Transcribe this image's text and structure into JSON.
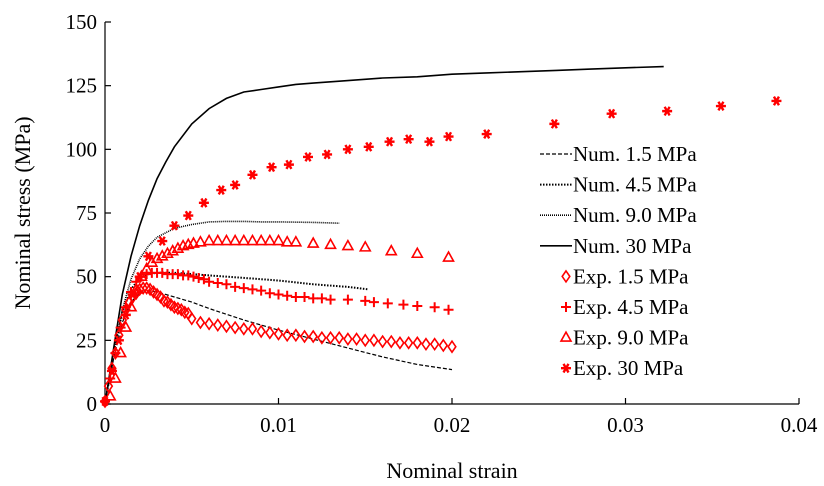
{
  "chart_data": {
    "type": "scatter",
    "title": "",
    "xlabel": "Nominal strain",
    "ylabel": "Nominal stress (MPa)",
    "xlim": [
      0,
      0.04
    ],
    "ylim": [
      0,
      150
    ],
    "xticks": [
      0,
      0.01,
      0.02,
      0.03,
      0.04
    ],
    "xtick_labels": [
      "0",
      "0.01",
      "0.02",
      "0.03",
      "0.04"
    ],
    "yticks": [
      0,
      25,
      50,
      75,
      100,
      125,
      150
    ],
    "ytick_labels": [
      "0",
      "25",
      "50",
      "75",
      "100",
      "125",
      "150"
    ],
    "grid": false,
    "legend_position": "right",
    "series": [
      {
        "name": "Num. 1.5 MPa",
        "kind": "line",
        "style": "dashed",
        "color": "#000000",
        "x": [
          0,
          0.0005,
          0.001,
          0.0015,
          0.002,
          0.0025,
          0.003,
          0.004,
          0.005,
          0.006,
          0.008,
          0.01,
          0.012,
          0.014,
          0.016,
          0.018,
          0.02
        ],
        "y": [
          0,
          18,
          32,
          40,
          43.5,
          44.5,
          44,
          42,
          40,
          37.5,
          33,
          29,
          25.5,
          22,
          18.5,
          15.5,
          13.5
        ]
      },
      {
        "name": "Num. 4.5 MPa",
        "kind": "line",
        "style": "dotted-plus",
        "color": "#000000",
        "x": [
          0,
          0.0005,
          0.001,
          0.0015,
          0.002,
          0.0025,
          0.003,
          0.004,
          0.005,
          0.006,
          0.008,
          0.01,
          0.012,
          0.014,
          0.0152
        ],
        "y": [
          0,
          20,
          36,
          45,
          49.5,
          51,
          51.5,
          51.5,
          51,
          50.5,
          49.5,
          48.5,
          47,
          46,
          45
        ]
      },
      {
        "name": "Num. 9.0 MPa",
        "kind": "line",
        "style": "dotted",
        "color": "#000000",
        "x": [
          0,
          0.0005,
          0.001,
          0.0015,
          0.002,
          0.0025,
          0.003,
          0.004,
          0.005,
          0.006,
          0.007,
          0.008,
          0.009,
          0.01,
          0.012,
          0.0135
        ],
        "y": [
          0,
          20,
          37,
          49,
          57,
          62,
          65.5,
          69,
          70.5,
          71.5,
          71.7,
          71.7,
          71.5,
          71.5,
          71.3,
          71
        ]
      },
      {
        "name": "Num. 30 MPa",
        "kind": "line",
        "style": "solid",
        "color": "#000000",
        "x": [
          0,
          0.0005,
          0.001,
          0.0015,
          0.002,
          0.0025,
          0.003,
          0.0035,
          0.004,
          0.005,
          0.006,
          0.007,
          0.008,
          0.009,
          0.01,
          0.011,
          0.012,
          0.014,
          0.016,
          0.018,
          0.02,
          0.022,
          0.024,
          0.026,
          0.028,
          0.03,
          0.0322
        ],
        "y": [
          0,
          22,
          43,
          58,
          70,
          80,
          88.5,
          95,
          101,
          110,
          116,
          120,
          122.5,
          123.5,
          124.5,
          125.5,
          126,
          127,
          128,
          128.5,
          129.5,
          130,
          130.5,
          131,
          131.5,
          132,
          132.5
        ]
      },
      {
        "name": "Exp. 1.5 MPa",
        "kind": "marker",
        "marker": "diamond",
        "color": "#ff0000",
        "x": [
          0,
          0.0002,
          0.0004,
          0.0006,
          0.0008,
          0.001,
          0.0012,
          0.0014,
          0.0016,
          0.0018,
          0.002,
          0.0022,
          0.0024,
          0.0026,
          0.0028,
          0.003,
          0.0032,
          0.0034,
          0.0036,
          0.0038,
          0.004,
          0.0042,
          0.0044,
          0.0046,
          0.0048,
          0.005,
          0.0055,
          0.006,
          0.0065,
          0.007,
          0.0075,
          0.008,
          0.0085,
          0.009,
          0.0095,
          0.01,
          0.0105,
          0.011,
          0.0115,
          0.012,
          0.0125,
          0.013,
          0.0135,
          0.014,
          0.0145,
          0.015,
          0.0155,
          0.016,
          0.0165,
          0.017,
          0.0175,
          0.018,
          0.0185,
          0.019,
          0.0195,
          0.02
        ],
        "y": [
          1,
          7,
          14,
          20,
          27,
          33,
          37,
          40,
          42,
          43.5,
          45,
          45.5,
          45.5,
          45,
          44,
          43,
          42,
          40.5,
          40,
          39,
          38,
          37.5,
          37,
          36,
          35.5,
          33.5,
          32,
          31.5,
          31,
          30.5,
          30,
          29.5,
          29.5,
          28.5,
          28,
          27.5,
          27,
          27,
          26.5,
          26.5,
          26,
          26,
          26,
          25.5,
          25.5,
          25,
          25,
          24.5,
          24.5,
          24,
          24,
          24,
          23.5,
          23.5,
          23,
          22.5
        ]
      },
      {
        "name": "Exp. 4.5 MPa",
        "kind": "marker",
        "marker": "plus",
        "color": "#ff0000",
        "x": [
          0,
          0.0003,
          0.0006,
          0.0009,
          0.0012,
          0.0015,
          0.0018,
          0.0021,
          0.0024,
          0.0027,
          0.003,
          0.0033,
          0.0036,
          0.0039,
          0.0042,
          0.0045,
          0.0048,
          0.0051,
          0.0054,
          0.0057,
          0.006,
          0.0065,
          0.007,
          0.0075,
          0.008,
          0.0085,
          0.009,
          0.0095,
          0.01,
          0.0105,
          0.011,
          0.0115,
          0.012,
          0.0125,
          0.013,
          0.014,
          0.015,
          0.0155,
          0.0163,
          0.0172,
          0.018,
          0.019,
          0.0198
        ],
        "y": [
          1,
          10,
          20,
          30,
          38,
          44,
          48,
          50,
          51,
          51.5,
          51.5,
          51.5,
          51,
          51,
          51,
          50.5,
          50.5,
          50,
          49.5,
          49,
          48,
          47.5,
          47,
          46,
          45.5,
          45,
          44.5,
          43.5,
          43,
          42.5,
          42,
          42,
          41.5,
          41.5,
          41,
          41,
          40.5,
          40,
          39.5,
          39,
          38.5,
          38,
          37
        ]
      },
      {
        "name": "Exp. 9.0 MPa",
        "kind": "marker",
        "marker": "triangle",
        "color": "#ff0000",
        "x": [
          0.0003,
          0.0006,
          0.0009,
          0.0012,
          0.0015,
          0.0018,
          0.0021,
          0.0024,
          0.0027,
          0.003,
          0.0033,
          0.0036,
          0.0039,
          0.0042,
          0.0045,
          0.0048,
          0.0051,
          0.0055,
          0.006,
          0.0065,
          0.007,
          0.0075,
          0.008,
          0.0085,
          0.009,
          0.0095,
          0.01,
          0.0105,
          0.011,
          0.012,
          0.013,
          0.014,
          0.015,
          0.0165,
          0.018,
          0.0198
        ],
        "y": [
          3,
          10,
          20,
          30,
          38,
          45,
          50,
          53,
          55.5,
          57,
          58,
          59,
          60,
          61,
          62,
          62.5,
          63,
          63.5,
          64,
          64,
          64,
          64,
          64,
          64,
          64,
          64,
          64,
          63.5,
          63.5,
          63,
          62.5,
          62,
          61.5,
          60,
          59,
          57.5
        ]
      },
      {
        "name": "Exp. 30 MPa",
        "kind": "marker",
        "marker": "star",
        "color": "#ff0000",
        "x": [
          0,
          0.0004,
          0.0008,
          0.0012,
          0.0016,
          0.002,
          0.0025,
          0.0033,
          0.004,
          0.0048,
          0.0057,
          0.0067,
          0.0075,
          0.0085,
          0.0096,
          0.0106,
          0.0117,
          0.0128,
          0.014,
          0.0152,
          0.0164,
          0.0175,
          0.0187,
          0.0198,
          0.022,
          0.0259,
          0.0292,
          0.0324,
          0.0355,
          0.0387
        ],
        "y": [
          1,
          13,
          25,
          35,
          43,
          50,
          58,
          64,
          70,
          74,
          79,
          84,
          86,
          90,
          93,
          94,
          97,
          98,
          100,
          101,
          103,
          104,
          103,
          105,
          106,
          110,
          114,
          115,
          117,
          119
        ]
      }
    ]
  }
}
